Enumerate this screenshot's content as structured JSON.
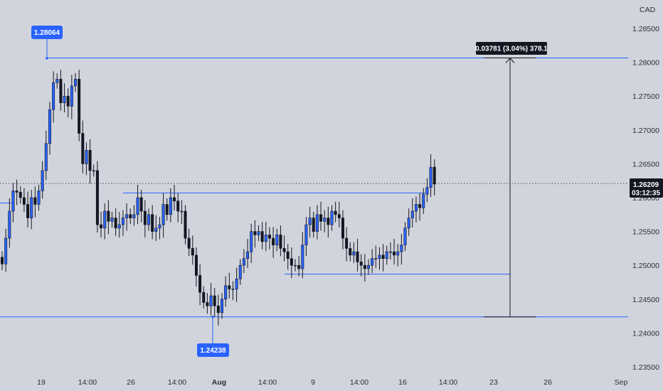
{
  "currency": "CAD",
  "price_labels": {
    "high": "1.28064",
    "low": "1.24238",
    "current": "1.26209",
    "countdown": "03:12:35",
    "measure": "0.03781 (3.04%) 378.1"
  },
  "colors": {
    "background": "#d1d4dc",
    "line": "#2962ff",
    "candle": "#131722",
    "label_bg": "#2962ff",
    "dark_label_bg": "#131722"
  },
  "chart_data": {
    "type": "candlestick",
    "ylim": [
      1.233,
      1.289
    ],
    "y_ticks": [
      "1.23500",
      "1.24000",
      "1.24500",
      "1.25000",
      "1.25500",
      "1.26000",
      "1.26500",
      "1.27000",
      "1.27500",
      "1.28000",
      "1.28500"
    ],
    "x_ticks": [
      "19",
      "14:00",
      "26",
      "14:00",
      "Aug",
      "14:00",
      "9",
      "14:00",
      "16",
      "14:00",
      "23",
      "26",
      "Sep"
    ],
    "lines": {
      "high_level": 1.28064,
      "low_level": 1.24238,
      "resistance": 1.2607,
      "support": 1.2487,
      "left_level": 1.2592,
      "current": 1.26209
    },
    "closes": [
      1.2502,
      1.254,
      1.258,
      1.261,
      1.2608,
      1.26,
      1.259,
      1.257,
      1.26,
      1.259,
      1.261,
      1.264,
      1.268,
      1.273,
      1.277,
      1.2775,
      1.274,
      1.275,
      1.2735,
      1.2765,
      1.2775,
      1.2695,
      1.265,
      1.267,
      1.264,
      1.264,
      1.256,
      1.2555,
      1.258,
      1.2565,
      1.257,
      1.2555,
      1.256,
      1.257,
      1.2575,
      1.257,
      1.2575,
      1.26,
      1.258,
      1.256,
      1.2575,
      1.255,
      1.2555,
      1.256,
      1.259,
      1.2575,
      1.26,
      1.2595,
      1.258,
      1.258,
      1.254,
      1.2525,
      1.2515,
      1.2485,
      1.246,
      1.2445,
      1.244,
      1.2455,
      1.244,
      1.243,
      1.245,
      1.247,
      1.2465,
      1.2465,
      1.248,
      1.25,
      1.251,
      1.252,
      1.255,
      1.2545,
      1.255,
      1.2535,
      1.2545,
      1.254,
      1.253,
      1.2545,
      1.2525,
      1.252,
      1.251,
      1.25,
      1.25,
      1.2495,
      1.253,
      1.256,
      1.257,
      1.255,
      1.2575,
      1.2565,
      1.257,
      1.256,
      1.258,
      1.2575,
      1.257,
      1.254,
      1.2525,
      1.2515,
      1.252,
      1.2505,
      1.25,
      1.2495,
      1.25,
      1.251,
      1.251,
      1.2515,
      1.251,
      1.252,
      1.252,
      1.2515,
      1.252,
      1.253,
      1.2555,
      1.257,
      1.258,
      1.259,
      1.2585,
      1.2605,
      1.2615,
      1.2645,
      1.262
    ]
  }
}
